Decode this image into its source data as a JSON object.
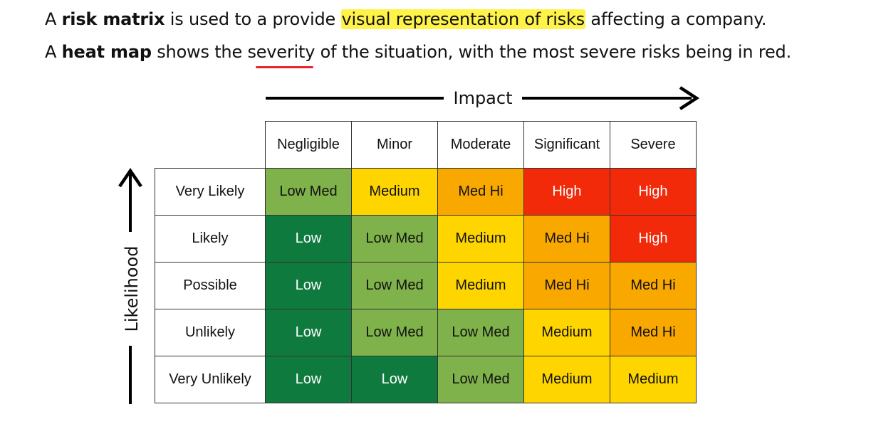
{
  "intro": {
    "line1": {
      "a": "A ",
      "bold": "risk matrix",
      "b": " is used to a provide ",
      "highlight": "visual representation of risks",
      "c": " affecting a company."
    },
    "line2": {
      "a": "A ",
      "bold": "heat map",
      "b": " shows the ",
      "underlined": "severity",
      "c": " of the situation, with the most severe risks being in red."
    }
  },
  "axes": {
    "impact_label": "Impact",
    "likelihood_label": "Likelihood"
  },
  "matrix": {
    "columns": [
      "Negligible",
      "Minor",
      "Moderate",
      "Significant",
      "Severe"
    ],
    "rows": [
      {
        "label": "Very Likely",
        "cells": [
          "Low Med",
          "Medium",
          "Med Hi",
          "High",
          "High"
        ]
      },
      {
        "label": "Likely",
        "cells": [
          "Low",
          "Low Med",
          "Medium",
          "Med Hi",
          "High"
        ]
      },
      {
        "label": "Possible",
        "cells": [
          "Low",
          "Low Med",
          "Medium",
          "Med Hi",
          "Med Hi"
        ]
      },
      {
        "label": "Unlikely",
        "cells": [
          "Low",
          "Low Med",
          "Low Med",
          "Medium",
          "Med Hi"
        ]
      },
      {
        "label": "Very Unlikely",
        "cells": [
          "Low",
          "Low",
          "Low Med",
          "Medium",
          "Medium"
        ]
      }
    ]
  },
  "colors": {
    "Low": "#0f7a3e",
    "Low Med": "#7fb24a",
    "Medium": "#ffd500",
    "Med Hi": "#f9a800",
    "High": "#f22a0a",
    "highlight": "#fff34a",
    "underline": "#e8242a"
  }
}
